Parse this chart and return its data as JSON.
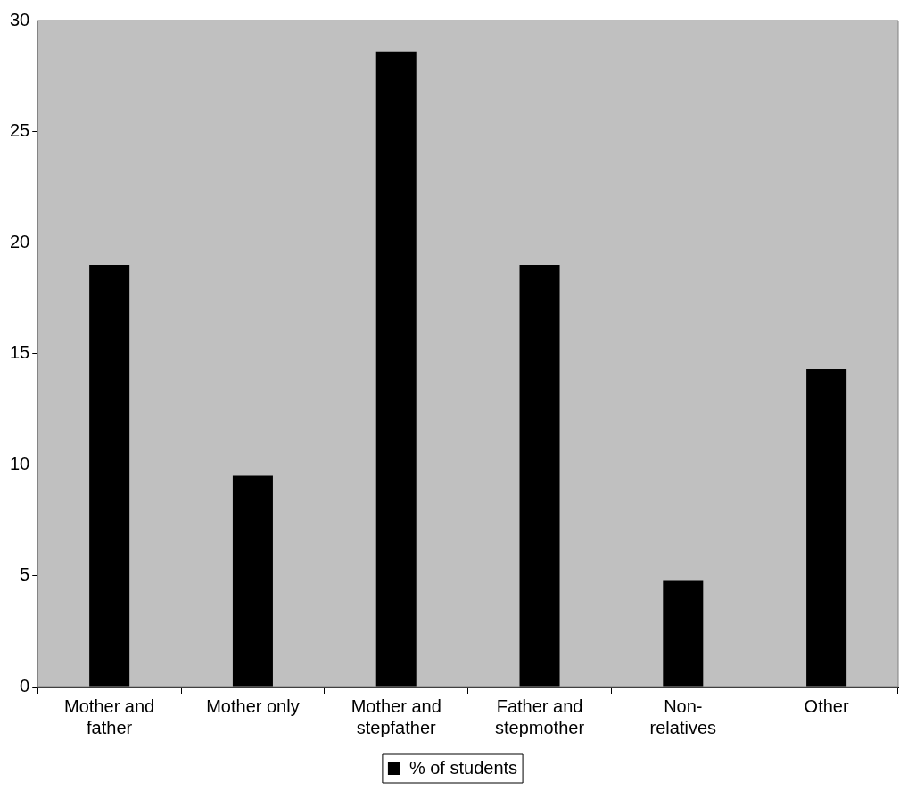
{
  "chart_data": {
    "type": "bar",
    "categories": [
      "Mother and father",
      "Mother only",
      "Mother and stepfather",
      "Father and stepmother",
      "Non-relatives",
      "Other"
    ],
    "series": [
      {
        "name": "% of students",
        "color": "#000000",
        "values": [
          19.0,
          9.5,
          28.6,
          19.0,
          4.8,
          14.3
        ]
      }
    ],
    "ylim": [
      0,
      30
    ],
    "yticks": [
      0,
      5,
      10,
      15,
      20,
      25,
      30
    ],
    "legend": "bottom"
  }
}
